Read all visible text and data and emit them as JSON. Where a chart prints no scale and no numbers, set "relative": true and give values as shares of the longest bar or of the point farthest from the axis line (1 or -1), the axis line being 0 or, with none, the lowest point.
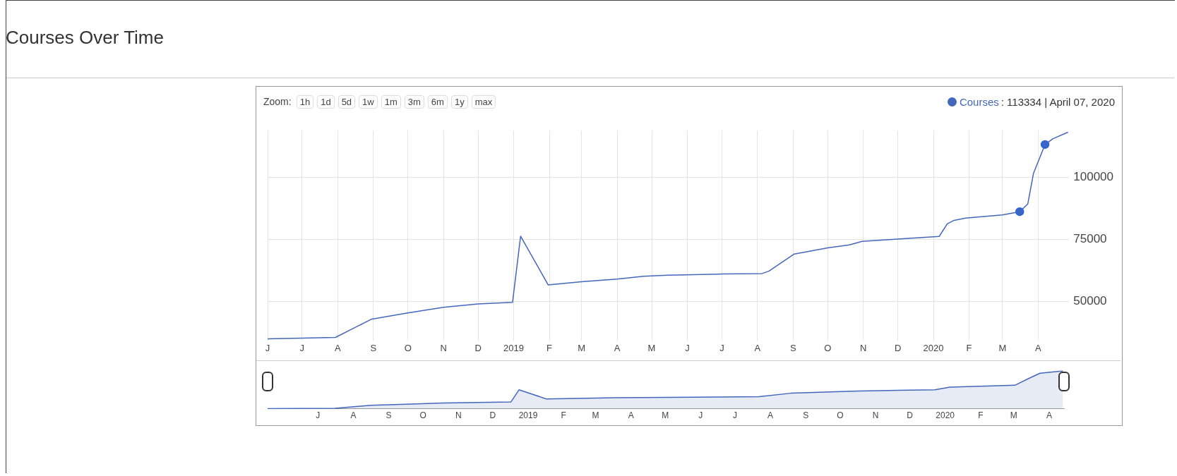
{
  "chart_data": [
    {
      "type": "line",
      "title": "Courses Over Time",
      "annotations": [
        ": 113334 | April 07, 2020",
        "Zoom:",
        "1h",
        "1d",
        "5d",
        "1w",
        "1m",
        "3m",
        "6m",
        "1y",
        "max"
      ],
      "xlim": [
        "2018-06-01",
        "2020-04-28"
      ],
      "ylim": [
        34000,
        119000
      ],
      "yticks": [
        50000,
        75000,
        100000
      ],
      "xticks": [
        {
          "value": "2018-06-01",
          "label": "J"
        },
        {
          "value": "2018-07-01",
          "label": "J"
        },
        {
          "value": "2018-08-01",
          "label": "A"
        },
        {
          "value": "2018-09-01",
          "label": "S"
        },
        {
          "value": "2018-10-01",
          "label": "O"
        },
        {
          "value": "2018-11-01",
          "label": "N"
        },
        {
          "value": "2018-12-01",
          "label": "D"
        },
        {
          "value": "2019-01-01",
          "label": "2019"
        },
        {
          "value": "2019-02-01",
          "label": "F"
        },
        {
          "value": "2019-03-01",
          "label": "M"
        },
        {
          "value": "2019-04-01",
          "label": "A"
        },
        {
          "value": "2019-05-01",
          "label": "M"
        },
        {
          "value": "2019-06-01",
          "label": "J"
        },
        {
          "value": "2019-07-01",
          "label": "J"
        },
        {
          "value": "2019-08-01",
          "label": "A"
        },
        {
          "value": "2019-09-01",
          "label": "S"
        },
        {
          "value": "2019-10-01",
          "label": "O"
        },
        {
          "value": "2019-11-01",
          "label": "N"
        },
        {
          "value": "2019-12-01",
          "label": "D"
        },
        {
          "value": "2020-01-01",
          "label": "2020"
        },
        {
          "value": "2020-02-01",
          "label": "F"
        },
        {
          "value": "2020-03-01",
          "label": "M"
        },
        {
          "value": "2020-04-01",
          "label": "A"
        }
      ],
      "grid": true,
      "legend": "top right",
      "series": [
        {
          "name": "Courses",
          "color": "#4466bb",
          "x": [
            "2018-06-01",
            "2018-07-30",
            "2018-08-30",
            "2018-09-30",
            "2018-11-01",
            "2018-12-01",
            "2018-12-31",
            "2019-01-07",
            "2019-01-31",
            "2019-03-01",
            "2019-04-01",
            "2019-04-24",
            "2019-05-15",
            "2019-07-01",
            "2019-08-05",
            "2019-08-11",
            "2019-08-23",
            "2019-09-02",
            "2019-10-01",
            "2019-10-20",
            "2019-10-31",
            "2019-12-01",
            "2020-01-06",
            "2020-01-13",
            "2020-01-19",
            "2020-01-29",
            "2020-03-01",
            "2020-03-16",
            "2020-03-23",
            "2020-03-28",
            "2020-04-04",
            "2020-04-07",
            "2020-04-14",
            "2020-04-27"
          ],
          "values": [
            34800,
            35400,
            42700,
            45200,
            47600,
            48900,
            49600,
            76300,
            56600,
            57900,
            59000,
            60100,
            60500,
            61000,
            61200,
            62200,
            66000,
            69100,
            71600,
            72800,
            74200,
            75100,
            76200,
            81300,
            82700,
            83600,
            84900,
            86200,
            89300,
            101700,
            109800,
            113334,
            115700,
            118300
          ]
        },
        {
          "type": "scatter",
          "color": "#3366cc",
          "x": [
            "2020-03-16",
            "2020-04-07"
          ],
          "values": [
            86200,
            113334
          ]
        }
      ]
    },
    {
      "type": "area",
      "relative": true,
      "tick_labels": "x",
      "xlim": [
        "2018-06-01",
        "2020-04-28"
      ],
      "xticks": [
        {
          "value": "2018-07-15",
          "label": "J"
        },
        {
          "value": "2018-08-15",
          "label": "A"
        },
        {
          "value": "2018-09-15",
          "label": "S"
        },
        {
          "value": "2018-10-15",
          "label": "O"
        },
        {
          "value": "2018-11-15",
          "label": "N"
        },
        {
          "value": "2018-12-15",
          "label": "D"
        },
        {
          "value": "2019-01-15",
          "label": "2019"
        },
        {
          "value": "2019-02-15",
          "label": "F"
        },
        {
          "value": "2019-03-15",
          "label": "M"
        },
        {
          "value": "2019-04-15",
          "label": "A"
        },
        {
          "value": "2019-05-15",
          "label": "M"
        },
        {
          "value": "2019-06-15",
          "label": "J"
        },
        {
          "value": "2019-07-15",
          "label": "J"
        },
        {
          "value": "2019-08-15",
          "label": "A"
        },
        {
          "value": "2019-09-15",
          "label": "S"
        },
        {
          "value": "2019-10-15",
          "label": "O"
        },
        {
          "value": "2019-11-15",
          "label": "N"
        },
        {
          "value": "2019-12-15",
          "label": "D"
        },
        {
          "value": "2020-01-15",
          "label": "2020"
        },
        {
          "value": "2020-02-15",
          "label": "F"
        },
        {
          "value": "2020-03-15",
          "label": "M"
        },
        {
          "value": "2020-04-15",
          "label": "A"
        }
      ],
      "series": [
        {
          "color": "#4466bb",
          "x": [
            "2018-06-01",
            "2018-07-30",
            "2018-08-30",
            "2018-09-30",
            "2018-11-01",
            "2018-12-31",
            "2019-01-07",
            "2019-01-31",
            "2019-04-01",
            "2019-08-05",
            "2019-09-02",
            "2019-10-31",
            "2020-01-06",
            "2020-01-19",
            "2020-03-16",
            "2020-03-28",
            "2020-04-07",
            "2020-04-27"
          ],
          "values": [
            0,
            0.01,
            0.09,
            0.12,
            0.15,
            0.18,
            0.5,
            0.26,
            0.29,
            0.32,
            0.41,
            0.47,
            0.5,
            0.57,
            0.62,
            0.8,
            0.94,
            1
          ]
        }
      ]
    }
  ]
}
